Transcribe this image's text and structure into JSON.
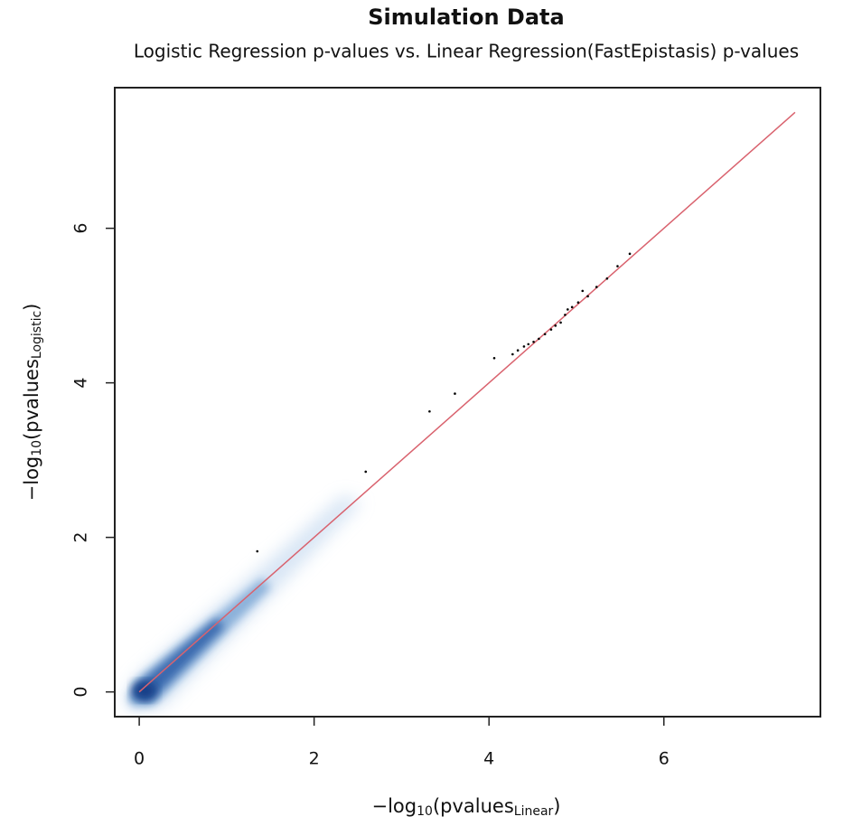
{
  "chart_data": {
    "type": "scatter",
    "title": "Simulation Data",
    "subtitle": "Logistic Regression p-values vs. Linear Regression(FastEpistasis) p-values",
    "xlabel": {
      "prefix": "−log",
      "base": "10",
      "open": "(pvalues",
      "sub": "Linear",
      "close": ")"
    },
    "ylabel": {
      "prefix": "−log",
      "base": "10",
      "open": "(pvalues",
      "sub": "Logistic",
      "close": ")"
    },
    "xlim": [
      -0.28,
      7.79
    ],
    "ylim": [
      -0.32,
      7.82
    ],
    "xticks": [
      0,
      2,
      4,
      6
    ],
    "yticks": [
      0,
      2,
      4,
      6
    ],
    "x": [
      1.35,
      2.59,
      3.32,
      3.61,
      4.06,
      4.27,
      4.33,
      4.4,
      4.45,
      4.51,
      4.57,
      4.64,
      4.71,
      4.76,
      4.82,
      4.87,
      4.9,
      4.95,
      5.02,
      5.07,
      5.13,
      5.23,
      5.35,
      5.47,
      5.61
    ],
    "values": [
      1.82,
      2.85,
      3.63,
      3.86,
      4.32,
      4.37,
      4.42,
      4.47,
      4.5,
      4.53,
      4.57,
      4.63,
      4.69,
      4.74,
      4.78,
      4.88,
      4.95,
      4.98,
      5.04,
      5.19,
      5.12,
      5.24,
      5.35,
      5.51,
      5.67
    ],
    "color": "#000000",
    "reference_line": {
      "x": [
        0,
        7.5
      ],
      "values": [
        0,
        7.5
      ],
      "color": "#d9626e"
    }
  }
}
